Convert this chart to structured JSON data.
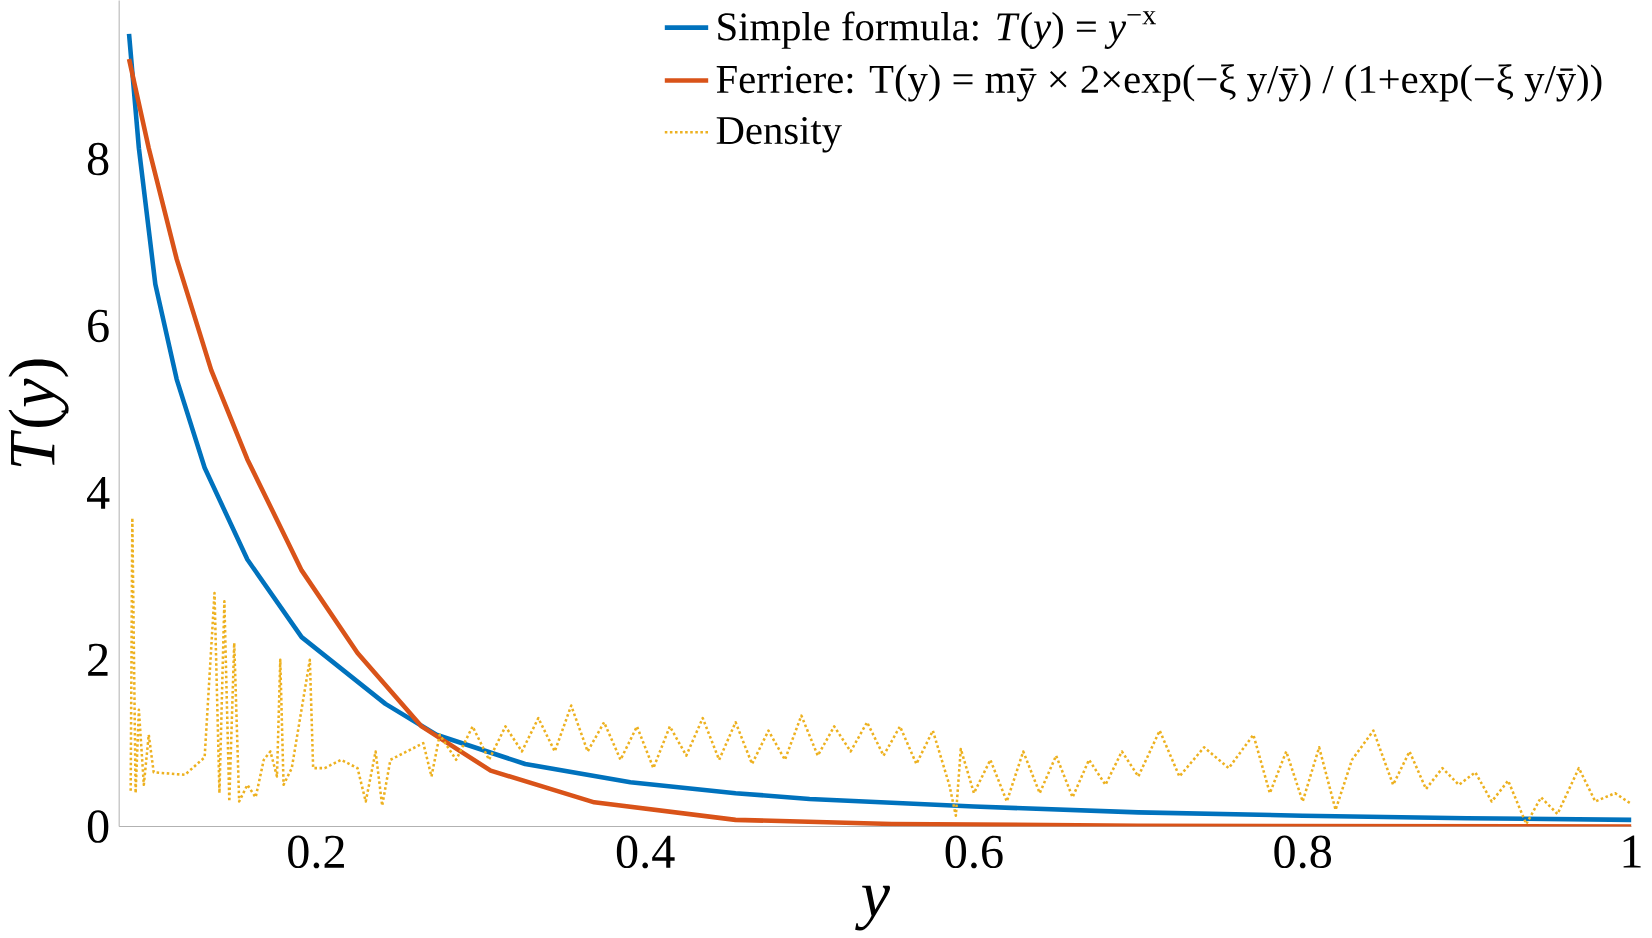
{
  "chart_data": {
    "type": "line",
    "xlabel": "y",
    "ylabel": "*T*(*y*)",
    "xlim": [
      0.08,
      1
    ],
    "ylim": [
      0,
      9.9
    ],
    "xticks": [
      0.2,
      0.4,
      0.6,
      0.8,
      1
    ],
    "yticks": [
      0,
      2,
      4,
      6,
      8
    ],
    "legend": "top right",
    "marker": "none",
    "grid": false,
    "series": [
      {
        "name": "Simple formula: *T*(*y*) = *y*$^{−x}$",
        "color": "#0072bd",
        "line_style": "solid",
        "x": [
          0.086,
          0.092,
          0.102,
          0.115,
          0.132,
          0.158,
          0.191,
          0.242,
          0.273,
          0.327,
          0.391,
          0.455,
          0.5,
          0.6,
          0.7,
          0.8,
          0.9,
          1.0
        ],
        "values": [
          9.5,
          8.13,
          6.5,
          5.36,
          4.3,
          3.2,
          2.27,
          1.47,
          1.1,
          0.75,
          0.53,
          0.4,
          0.33,
          0.24,
          0.17,
          0.13,
          0.1,
          0.08
        ]
      },
      {
        "name": "Ferriere: T(y) = mȳ × 2×exp(−ξ y/ȳ) / (1+exp(−ξ y/ȳ))",
        "color": "#d95319",
        "line_style": "solid",
        "x": [
          0.086,
          0.098,
          0.115,
          0.136,
          0.158,
          0.191,
          0.225,
          0.264,
          0.306,
          0.369,
          0.455,
          0.55,
          0.7,
          1.0
        ],
        "values": [
          9.2,
          8.13,
          6.8,
          5.47,
          4.4,
          3.07,
          2.08,
          1.2,
          0.67,
          0.29,
          0.08,
          0.03,
          0.01,
          0
        ]
      },
      {
        "name": "Density",
        "color": "#edb120",
        "line_style": "dotted",
        "x": [
          0.087,
          0.088,
          0.09,
          0.092,
          0.095,
          0.098,
          0.101,
          0.12,
          0.132,
          0.138,
          0.141,
          0.144,
          0.147,
          0.15,
          0.153,
          0.158,
          0.163,
          0.168,
          0.172,
          0.176,
          0.178,
          0.18,
          0.185,
          0.196,
          0.198,
          0.205,
          0.215,
          0.225,
          0.23,
          0.236,
          0.24,
          0.245,
          0.255,
          0.265,
          0.27,
          0.275,
          0.285,
          0.295,
          0.305,
          0.315,
          0.325,
          0.335,
          0.345,
          0.355,
          0.365,
          0.375,
          0.385,
          0.395,
          0.405,
          0.415,
          0.425,
          0.435,
          0.445,
          0.455,
          0.465,
          0.475,
          0.485,
          0.495,
          0.505,
          0.515,
          0.525,
          0.535,
          0.545,
          0.555,
          0.565,
          0.575,
          0.585,
          0.589,
          0.592,
          0.6,
          0.61,
          0.62,
          0.63,
          0.64,
          0.65,
          0.66,
          0.67,
          0.68,
          0.69,
          0.7,
          0.713,
          0.725,
          0.74,
          0.755,
          0.77,
          0.78,
          0.79,
          0.8,
          0.81,
          0.82,
          0.83,
          0.843,
          0.855,
          0.865,
          0.875,
          0.885,
          0.895,
          0.905,
          0.915,
          0.925,
          0.936,
          0.945,
          0.955,
          0.968,
          0.978,
          0.99,
          1.0
        ],
        "values": [
          0.43,
          3.7,
          0.4,
          1.4,
          0.5,
          1.1,
          0.65,
          0.62,
          0.83,
          2.8,
          0.4,
          2.7,
          0.3,
          2.2,
          0.3,
          0.5,
          0.35,
          0.8,
          0.9,
          0.6,
          2.0,
          0.5,
          0.7,
          2.0,
          0.7,
          0.7,
          0.8,
          0.7,
          0.3,
          0.9,
          0.25,
          0.8,
          0.9,
          1.0,
          0.6,
          1.1,
          0.8,
          1.2,
          0.8,
          1.2,
          0.9,
          1.3,
          0.9,
          1.45,
          0.9,
          1.25,
          0.8,
          1.2,
          0.7,
          1.2,
          0.85,
          1.3,
          0.8,
          1.25,
          0.75,
          1.15,
          0.8,
          1.33,
          0.85,
          1.2,
          0.9,
          1.25,
          0.85,
          1.2,
          0.75,
          1.15,
          0.5,
          0.13,
          0.93,
          0.4,
          0.8,
          0.3,
          0.9,
          0.4,
          0.85,
          0.35,
          0.8,
          0.5,
          0.9,
          0.6,
          1.15,
          0.6,
          0.95,
          0.7,
          1.1,
          0.4,
          0.9,
          0.3,
          0.95,
          0.2,
          0.8,
          1.15,
          0.5,
          0.9,
          0.45,
          0.7,
          0.5,
          0.65,
          0.3,
          0.55,
          0.03,
          0.35,
          0.15,
          0.7,
          0.3,
          0.4,
          0.27
        ]
      }
    ]
  }
}
